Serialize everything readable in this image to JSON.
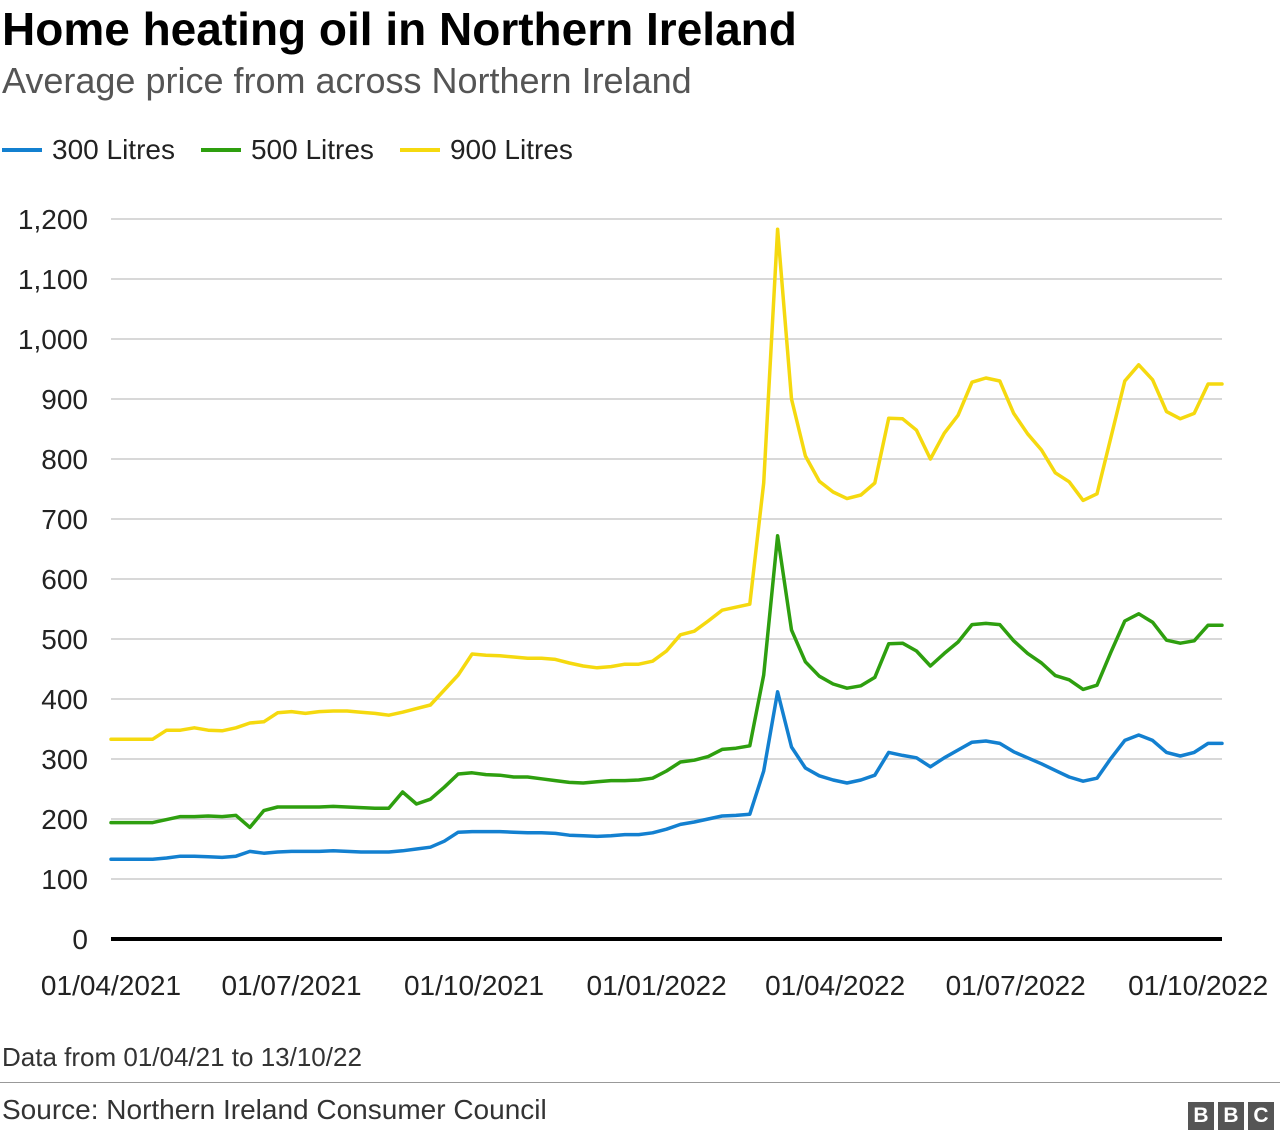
{
  "header": {
    "title": "Home heating oil in Northern Ireland",
    "subtitle": "Average price from across Northern Ireland"
  },
  "footer": {
    "note": "Data from 01/04/21 to 13/10/22",
    "source": "Source: Northern Ireland Consumer Council",
    "logo_letters": [
      "B",
      "B",
      "C"
    ]
  },
  "chart_data": {
    "type": "line",
    "title": "Home heating oil in Northern Ireland",
    "subtitle": "Average price from across Northern Ireland",
    "xlabel": "",
    "ylabel": "",
    "ylim": [
      0,
      1200
    ],
    "yticks": [
      0,
      100,
      200,
      300,
      400,
      500,
      600,
      700,
      800,
      900,
      1000,
      1100,
      1200
    ],
    "ytick_labels": [
      "0",
      "100",
      "200",
      "300",
      "400",
      "500",
      "600",
      "700",
      "800",
      "900",
      "1,000",
      "1,100",
      "1,200"
    ],
    "xlim": [
      "2021-04-01",
      "2022-10-13"
    ],
    "xticks": [
      "2021-04-01",
      "2021-07-01",
      "2021-10-01",
      "2022-01-01",
      "2022-04-01",
      "2022-07-01",
      "2022-10-01"
    ],
    "xtick_labels": [
      "01/04/2021",
      "01/07/2021",
      "01/10/2021",
      "01/01/2022",
      "01/04/2022",
      "01/07/2022",
      "01/10/2022"
    ],
    "grid": true,
    "legend": "top-left",
    "x": [
      "2021-04-01",
      "2021-04-08",
      "2021-04-15",
      "2021-04-22",
      "2021-04-29",
      "2021-05-06",
      "2021-05-13",
      "2021-05-20",
      "2021-05-27",
      "2021-06-03",
      "2021-06-10",
      "2021-06-17",
      "2021-06-24",
      "2021-07-01",
      "2021-07-08",
      "2021-07-15",
      "2021-07-22",
      "2021-07-29",
      "2021-08-05",
      "2021-08-12",
      "2021-08-19",
      "2021-08-26",
      "2021-09-02",
      "2021-09-09",
      "2021-09-16",
      "2021-09-23",
      "2021-09-30",
      "2021-10-07",
      "2021-10-14",
      "2021-10-21",
      "2021-10-28",
      "2021-11-04",
      "2021-11-11",
      "2021-11-18",
      "2021-11-25",
      "2021-12-02",
      "2021-12-09",
      "2021-12-16",
      "2021-12-23",
      "2021-12-30",
      "2022-01-06",
      "2022-01-13",
      "2022-01-20",
      "2022-01-27",
      "2022-02-03",
      "2022-02-10",
      "2022-02-17",
      "2022-02-24",
      "2022-03-03",
      "2022-03-10",
      "2022-03-17",
      "2022-03-24",
      "2022-03-31",
      "2022-04-07",
      "2022-04-14",
      "2022-04-21",
      "2022-04-28",
      "2022-05-05",
      "2022-05-12",
      "2022-05-19",
      "2022-05-26",
      "2022-06-02",
      "2022-06-09",
      "2022-06-16",
      "2022-06-23",
      "2022-06-30",
      "2022-07-07",
      "2022-07-14",
      "2022-07-21",
      "2022-07-28",
      "2022-08-04",
      "2022-08-11",
      "2022-08-18",
      "2022-08-25",
      "2022-09-01",
      "2022-09-08",
      "2022-09-15",
      "2022-09-22",
      "2022-09-29",
      "2022-10-06",
      "2022-10-13"
    ],
    "series": [
      {
        "name": "300 Litres",
        "color": "#1380d0",
        "values": [
          133,
          133,
          133,
          133,
          135,
          138,
          138,
          137,
          136,
          138,
          146,
          143,
          145,
          146,
          146,
          146,
          147,
          146,
          145,
          145,
          145,
          147,
          150,
          153,
          163,
          178,
          179,
          179,
          179,
          178,
          177,
          177,
          176,
          173,
          172,
          171,
          172,
          174,
          174,
          177,
          183,
          191,
          195,
          200,
          205,
          206,
          208,
          280,
          412,
          320,
          285,
          272,
          265,
          260,
          265,
          273,
          311,
          306,
          302,
          287,
          302,
          315,
          328,
          330,
          326,
          312,
          302,
          292,
          281,
          270,
          263,
          268,
          301,
          331,
          340,
          331,
          311,
          305,
          311,
          326,
          326
        ]
      },
      {
        "name": "500 Litres",
        "color": "#2e9f0f",
        "values": [
          194,
          194,
          194,
          194,
          199,
          204,
          204,
          205,
          204,
          206,
          186,
          214,
          220,
          220,
          220,
          220,
          221,
          220,
          219,
          218,
          218,
          245,
          225,
          233,
          253,
          275,
          277,
          274,
          273,
          270,
          270,
          267,
          264,
          261,
          260,
          262,
          264,
          264,
          265,
          268,
          280,
          295,
          298,
          304,
          316,
          318,
          322,
          440,
          672,
          515,
          462,
          438,
          425,
          418,
          422,
          436,
          492,
          493,
          480,
          455,
          476,
          495,
          524,
          526,
          524,
          497,
          476,
          460,
          439,
          432,
          416,
          423,
          478,
          530,
          542,
          528,
          498,
          493,
          497,
          523,
          523
        ]
      },
      {
        "name": "900 Litres",
        "color": "#f5d90f",
        "values": [
          333,
          333,
          333,
          333,
          348,
          348,
          352,
          348,
          347,
          352,
          360,
          362,
          377,
          379,
          376,
          379,
          380,
          380,
          378,
          376,
          373,
          378,
          384,
          390,
          415,
          440,
          475,
          473,
          472,
          470,
          468,
          468,
          466,
          460,
          455,
          452,
          454,
          458,
          458,
          463,
          480,
          507,
          513,
          530,
          548,
          553,
          558,
          760,
          1183,
          900,
          805,
          763,
          745,
          734,
          740,
          760,
          868,
          867,
          848,
          800,
          843,
          873,
          928,
          935,
          930,
          876,
          842,
          815,
          777,
          762,
          731,
          742,
          836,
          930,
          957,
          932,
          879,
          867,
          876,
          925,
          925
        ]
      }
    ]
  }
}
